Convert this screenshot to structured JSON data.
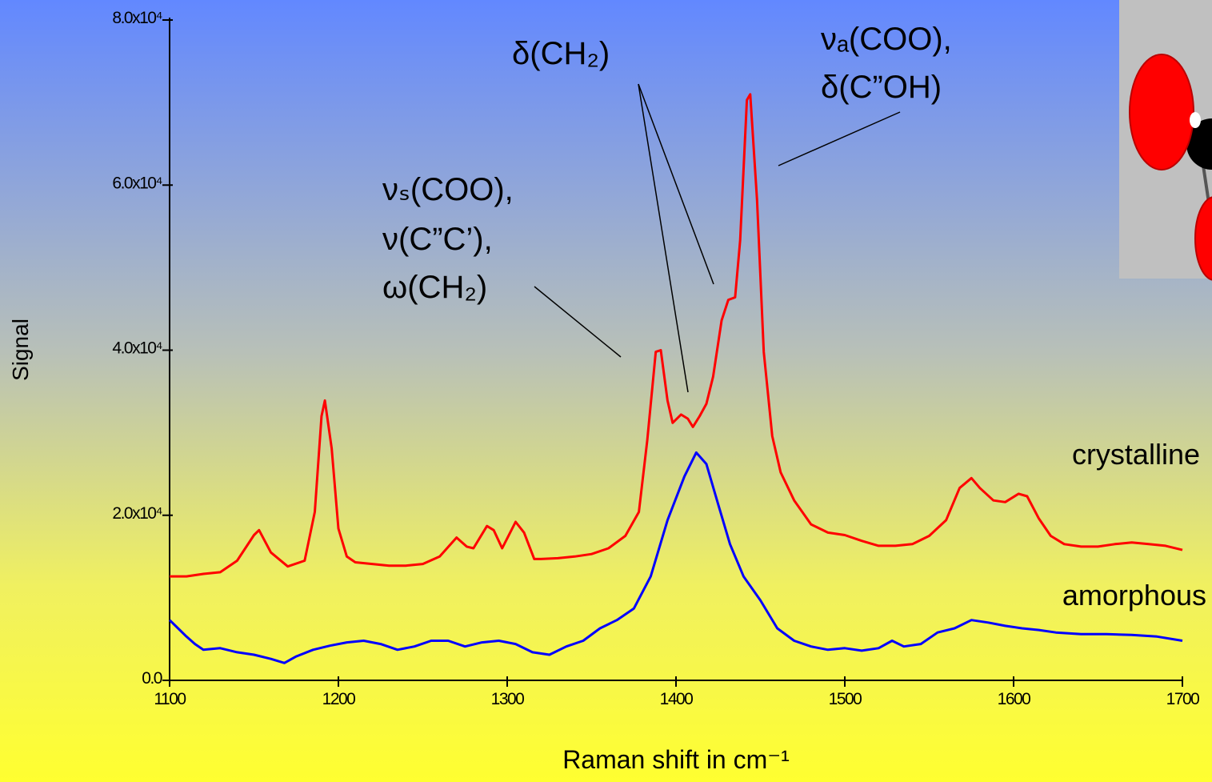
{
  "chart_data": {
    "type": "line",
    "xlabel": "Raman shift in cm⁻¹",
    "ylabel": "Signal",
    "xlim": [
      1100,
      1700
    ],
    "ylim": [
      0,
      80000
    ],
    "xticks": [
      1100,
      1200,
      1300,
      1400,
      1500,
      1600,
      1700
    ],
    "yticks": [
      {
        "value": 0,
        "label": "0.0"
      },
      {
        "value": 20000,
        "label": "2.0x10⁴"
      },
      {
        "value": 40000,
        "label": "4.0x10⁴"
      },
      {
        "value": 60000,
        "label": "6.0x10⁴"
      },
      {
        "value": 80000,
        "label": "8.0x10⁴"
      }
    ],
    "annotations": [
      "νₛ(COO),",
      "ν(C”C’),",
      "ω(CH₂)",
      "δ(CH₂)",
      "νₐ(COO),",
      "δ(C”OH)"
    ],
    "series": [
      {
        "name": "crystalline",
        "color": "#ff0000",
        "label_color": "#e8005a",
        "x": [
          1100,
          1110,
          1120,
          1130,
          1140,
          1150,
          1153,
          1160,
          1170,
          1180,
          1186,
          1190,
          1192,
          1196,
          1200,
          1205,
          1210,
          1220,
          1230,
          1240,
          1250,
          1260,
          1270,
          1276,
          1280,
          1288,
          1292,
          1297,
          1305,
          1310,
          1316,
          1320,
          1330,
          1340,
          1350,
          1360,
          1370,
          1378,
          1383,
          1388,
          1391,
          1395,
          1398,
          1403,
          1407,
          1410,
          1414,
          1418,
          1422,
          1427,
          1431,
          1435,
          1438,
          1442,
          1444,
          1448,
          1452,
          1457,
          1462,
          1470,
          1480,
          1490,
          1500,
          1510,
          1520,
          1530,
          1540,
          1550,
          1560,
          1568,
          1575,
          1580,
          1588,
          1595,
          1603,
          1608,
          1615,
          1622,
          1630,
          1640,
          1650,
          1660,
          1670,
          1680,
          1690,
          1700
        ],
        "values": [
          12600,
          12600,
          12900,
          13100,
          14500,
          17600,
          18200,
          15500,
          13800,
          14500,
          20400,
          32000,
          33900,
          28100,
          18400,
          15000,
          14300,
          14100,
          13900,
          13900,
          14100,
          15000,
          17300,
          16200,
          16000,
          18700,
          18200,
          16000,
          19200,
          17900,
          14700,
          14700,
          14800,
          15000,
          15300,
          16000,
          17500,
          20400,
          29100,
          39800,
          40000,
          33900,
          31200,
          32200,
          31700,
          30700,
          32000,
          33500,
          36800,
          43600,
          46100,
          46400,
          53300,
          70300,
          71000,
          58200,
          39800,
          29600,
          25200,
          21800,
          18900,
          17900,
          17600,
          16900,
          16300,
          16300,
          16500,
          17500,
          19400,
          23300,
          24500,
          23300,
          21800,
          21600,
          22600,
          22300,
          19600,
          17500,
          16500,
          16200,
          16200,
          16500,
          16700,
          16500,
          16300,
          15800
        ]
      },
      {
        "name": "amorphous",
        "color": "#0000ff",
        "label_color": "#1a2aa0",
        "x": [
          1100,
          1105,
          1110,
          1115,
          1120,
          1130,
          1140,
          1150,
          1160,
          1168,
          1175,
          1185,
          1195,
          1205,
          1215,
          1225,
          1235,
          1245,
          1255,
          1265,
          1275,
          1285,
          1295,
          1305,
          1315,
          1325,
          1335,
          1345,
          1355,
          1365,
          1375,
          1385,
          1395,
          1405,
          1412,
          1418,
          1425,
          1432,
          1440,
          1450,
          1460,
          1470,
          1480,
          1490,
          1500,
          1510,
          1520,
          1528,
          1535,
          1545,
          1555,
          1565,
          1575,
          1585,
          1595,
          1605,
          1615,
          1625,
          1640,
          1655,
          1670,
          1685,
          1700
        ],
        "values": [
          7300,
          6300,
          5300,
          4400,
          3700,
          3900,
          3400,
          3100,
          2600,
          2100,
          2900,
          3700,
          4200,
          4600,
          4800,
          4400,
          3700,
          4100,
          4800,
          4800,
          4100,
          4600,
          4800,
          4400,
          3400,
          3100,
          4100,
          4800,
          6300,
          7300,
          8700,
          12600,
          19400,
          24700,
          27600,
          26200,
          21300,
          16500,
          12600,
          9700,
          6300,
          4800,
          4100,
          3700,
          3900,
          3600,
          3900,
          4800,
          4100,
          4400,
          5800,
          6300,
          7300,
          7000,
          6600,
          6300,
          6100,
          5800,
          5600,
          5600,
          5500,
          5300,
          4800
        ]
      }
    ]
  }
}
